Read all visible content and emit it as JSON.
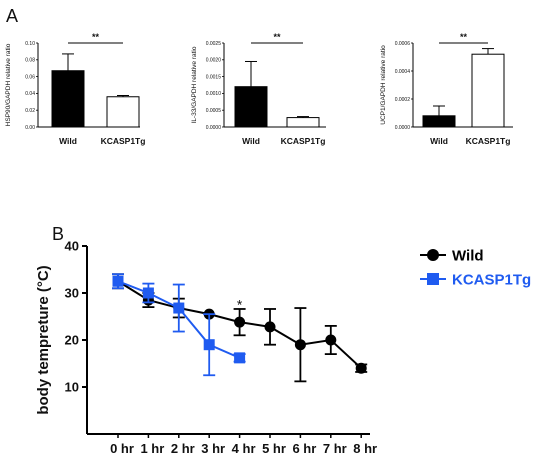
{
  "panel_a": {
    "label": "A",
    "charts": [
      {
        "type": "bar",
        "ylabel": "HSP90/GAPDH relative ratio",
        "categories": [
          "Wild",
          "KCASP1Tg"
        ],
        "values": [
          0.067,
          0.036
        ],
        "errors": [
          0.02,
          0.0015
        ],
        "fills": [
          "#000000",
          "#ffffff"
        ],
        "ylim": [
          0,
          0.1
        ],
        "yticks": [
          "0.00",
          "0.02",
          "0.04",
          "0.06",
          "0.08",
          "0.10"
        ],
        "significance": "**"
      },
      {
        "type": "bar",
        "ylabel": "IL-33/GAPDH relative ratio",
        "categories": [
          "Wild",
          "KCASP1Tg"
        ],
        "values": [
          0.0012,
          0.00028
        ],
        "errors": [
          0.00075,
          3e-05
        ],
        "fills": [
          "#000000",
          "#ffffff"
        ],
        "ylim": [
          0,
          0.0025
        ],
        "yticks": [
          "0.0000",
          "0.0005",
          "0.0010",
          "0.0015",
          "0.0020",
          "0.0025"
        ],
        "significance": "**"
      },
      {
        "type": "bar",
        "ylabel": "UCP1/GAPDH relative ratio",
        "categories": [
          "Wild",
          "KCASP1Tg"
        ],
        "values": [
          8e-05,
          0.00052
        ],
        "errors": [
          7e-05,
          4e-05
        ],
        "fills": [
          "#000000",
          "#ffffff"
        ],
        "ylim": [
          0,
          0.0006
        ],
        "yticks": [
          "0.0000",
          "0.0002",
          "0.0004",
          "0.0006"
        ],
        "significance": "**"
      }
    ]
  },
  "panel_b": {
    "label": "B",
    "annotation": "*",
    "legend": [
      {
        "name": "Wild",
        "color": "#000000",
        "marker": "circle"
      },
      {
        "name": "KCASP1Tg",
        "color": "#1f5bf0",
        "marker": "square"
      }
    ]
  },
  "chart_data": {
    "type": "line",
    "ylabel": "body tempreture (°C)",
    "xlabel": "",
    "categories": [
      "0 hr",
      "1 hr",
      "2 hr",
      "3 hr",
      "4 hr",
      "5 hr",
      "6 hr",
      "7 hr",
      "8 hr"
    ],
    "ylim": [
      0,
      40
    ],
    "yticks": [
      "10",
      "20",
      "30",
      "40"
    ],
    "series": [
      {
        "name": "Wild",
        "color": "#000000",
        "values": [
          32.5,
          28.5,
          26.8,
          25.5,
          23.8,
          22.8,
          19.0,
          20.0,
          14.0
        ],
        "errors": [
          1.5,
          1.5,
          2.0,
          0.0,
          2.8,
          3.8,
          7.8,
          3.0,
          0.8
        ]
      },
      {
        "name": "KCASP1Tg",
        "color": "#1f5bf0",
        "values": [
          32.5,
          30.0,
          26.8,
          19.0,
          16.2,
          null,
          null,
          null,
          null
        ],
        "errors": [
          1.5,
          2.0,
          5.0,
          6.5,
          0.8,
          null,
          null,
          null,
          null
        ]
      }
    ]
  }
}
